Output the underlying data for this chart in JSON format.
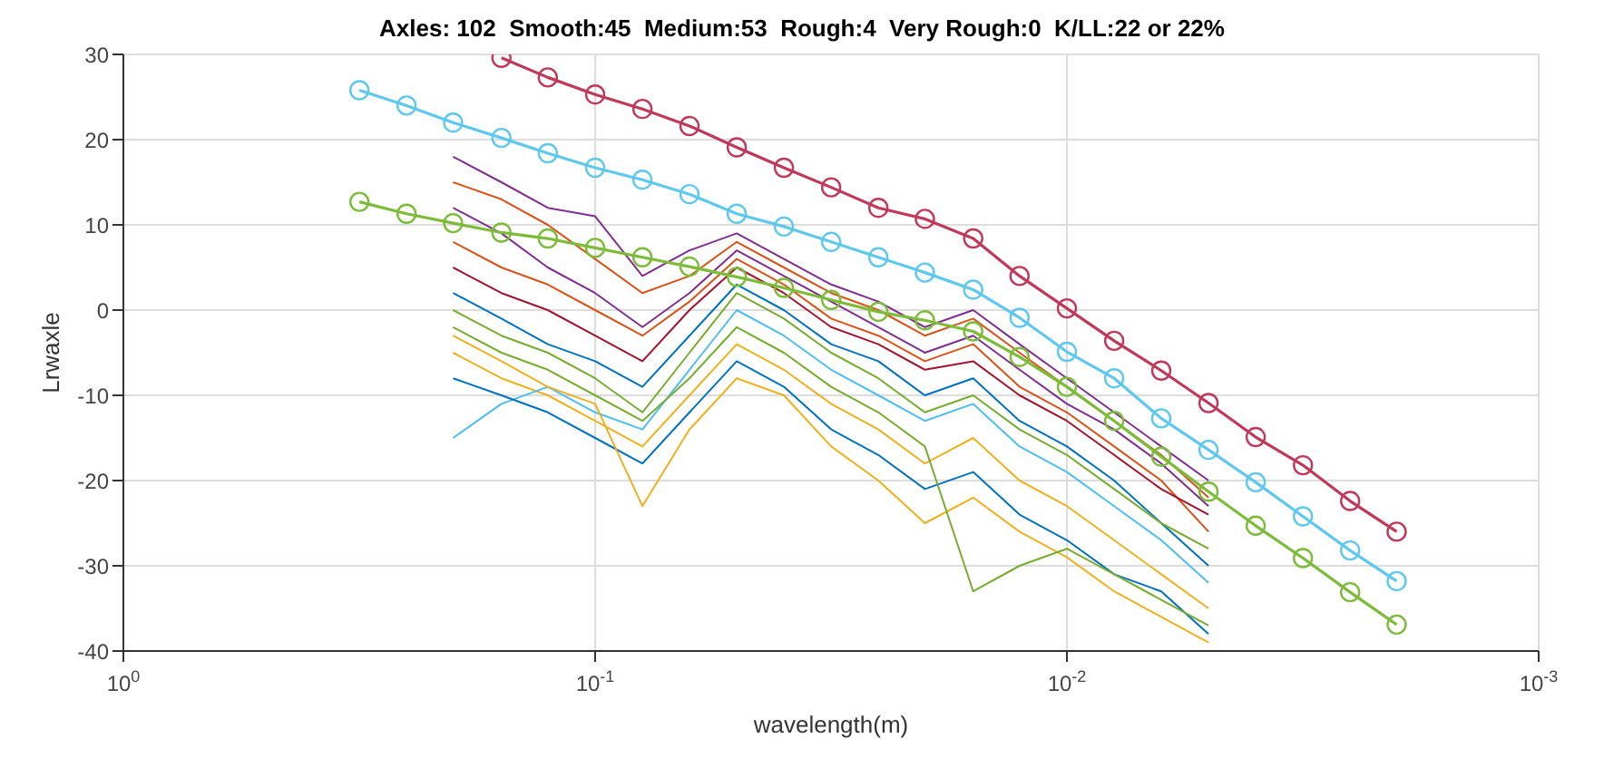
{
  "chart_data": {
    "type": "line",
    "title": "Axles: 102  Smooth:45  Medium:53  Rough:4  Very Rough:0  K/LL:22 or 22%",
    "xlabel": "wavelength(m)",
    "ylabel": "Lrwaxle",
    "log": "x",
    "grid": true,
    "line_style": "solid",
    "xlim": [
      1,
      0.001
    ],
    "xticks": [
      {
        "value": 1,
        "label": "10$^{0}$"
      },
      {
        "value": 0.1,
        "label": "10$^{-1}$"
      },
      {
        "value": 0.01,
        "label": "10$^{-2}$"
      },
      {
        "value": 0.001,
        "label": "10$^{-3}$"
      }
    ],
    "ylim": [
      -40,
      30
    ],
    "yticks": [
      -40,
      -30,
      -20,
      -10,
      0,
      10,
      20,
      30
    ],
    "x": [
      0.2,
      0.158,
      0.126,
      0.1,
      0.0794,
      0.0631,
      0.0501,
      0.0398,
      0.0316,
      0.0251,
      0.02,
      0.0158,
      0.0126,
      0.01,
      0.00794,
      0.00631,
      0.00501
    ],
    "series": [
      {
        "color": "#0072bd",
        "marker": "none",
        "values": [
          2,
          -1,
          -4,
          -6,
          -9,
          -3,
          3,
          0,
          -4,
          -6,
          -10,
          -8,
          -13,
          -16,
          -20,
          -25,
          -30
        ]
      },
      {
        "color": "#d95319",
        "marker": "none",
        "values": [
          8,
          5,
          3,
          0,
          -3,
          1,
          6,
          3,
          -1,
          -3,
          -6,
          -4,
          -9,
          -12,
          -16,
          -20,
          -26
        ]
      },
      {
        "color": "#edb120",
        "marker": "none",
        "values": [
          -5,
          -8,
          -10,
          -13,
          -16,
          -10,
          -4,
          -7,
          -11,
          -14,
          -18,
          -15,
          -20,
          -23,
          -27,
          -31,
          -35
        ]
      },
      {
        "color": "#7e2f8e",
        "marker": "none",
        "values": [
          12,
          9,
          5,
          2,
          -2,
          2,
          7,
          4,
          1,
          -2,
          -5,
          -3,
          -7,
          -11,
          -14,
          -18,
          -23
        ]
      },
      {
        "color": "#77ac30",
        "marker": "none",
        "values": [
          0,
          -3,
          -5,
          -8,
          -12,
          -5,
          2,
          -1,
          -5,
          -8,
          -12,
          -10,
          -14,
          -17,
          -21,
          -25,
          -28
        ]
      },
      {
        "color": "#4dbeee",
        "marker": "none",
        "values": [
          -15,
          -11,
          -9,
          -12,
          -14,
          -7,
          0,
          -3,
          -7,
          -10,
          -13,
          -11,
          -16,
          -19,
          -23,
          -27,
          -32
        ]
      },
      {
        "color": "#a2142f",
        "marker": "none",
        "values": [
          5,
          2,
          0,
          -3,
          -6,
          0,
          5,
          2,
          -2,
          -4,
          -7,
          -6,
          -10,
          -13,
          -17,
          -21,
          -24
        ]
      },
      {
        "color": "#0072bd",
        "marker": "none",
        "values": [
          -8,
          -10,
          -12,
          -15,
          -18,
          -12,
          -6,
          -9,
          -14,
          -17,
          -21,
          -19,
          -24,
          -27,
          -31,
          -33,
          -38
        ]
      },
      {
        "color": "#d95319",
        "marker": "none",
        "values": [
          15,
          13,
          10,
          6,
          2,
          4,
          8,
          5,
          2,
          0,
          -3,
          -1,
          -5,
          -9,
          -13,
          -17,
          -22
        ]
      },
      {
        "color": "#edb120",
        "marker": "none",
        "values": [
          -3,
          -6,
          -9,
          -11,
          -23,
          -14,
          -8,
          -10,
          -16,
          -20,
          -25,
          -22,
          -26,
          -29,
          -33,
          -36,
          -39
        ]
      },
      {
        "color": "#7e2f8e",
        "marker": "none",
        "values": [
          18,
          15,
          12,
          11,
          4,
          7,
          9,
          6,
          3,
          1,
          -2,
          0,
          -4,
          -8,
          -12,
          -16,
          -20
        ]
      },
      {
        "color": "#77ac30",
        "marker": "none",
        "values": [
          -2,
          -5,
          -7,
          -10,
          -13,
          -8,
          -2,
          -5,
          -9,
          -12,
          -16,
          -33,
          -30,
          -28,
          -31,
          -34,
          -37
        ]
      },
      {
        "color": "#c0395a",
        "marker": "circle",
        "x": [
          0.158,
          0.126,
          0.1,
          0.0794,
          0.0631,
          0.0501,
          0.0398,
          0.0316,
          0.0251,
          0.02,
          0.0158,
          0.0126,
          0.01,
          0.00794,
          0.00631,
          0.00501,
          0.00398,
          0.00316,
          0.00251,
          0.002
        ],
        "values": [
          29.6,
          27.3,
          25.3,
          23.6,
          21.6,
          19.1,
          16.7,
          14.4,
          12,
          10.7,
          8.4,
          4,
          0.2,
          -3.6,
          -7.1,
          -10.9,
          -14.9,
          -18.2,
          -22.4,
          -26
        ]
      },
      {
        "color": "#5ec8ee",
        "marker": "circle",
        "x": [
          0.316,
          0.251,
          0.2,
          0.158,
          0.126,
          0.1,
          0.0794,
          0.0631,
          0.0501,
          0.0398,
          0.0316,
          0.0251,
          0.02,
          0.0158,
          0.0126,
          0.01,
          0.00794,
          0.00631,
          0.00501,
          0.00398,
          0.00316,
          0.00251,
          0.002
        ],
        "values": [
          25.8,
          24,
          22,
          20.2,
          18.4,
          16.7,
          15.3,
          13.6,
          11.3,
          9.8,
          8,
          6.2,
          4.4,
          2.4,
          -0.9,
          -4.9,
          -8,
          -12.7,
          -16.4,
          -20.2,
          -24.2,
          -28.2,
          -31.8
        ]
      },
      {
        "color": "#7dbb3a",
        "marker": "circle",
        "x": [
          0.316,
          0.251,
          0.2,
          0.158,
          0.126,
          0.1,
          0.0794,
          0.0631,
          0.0501,
          0.0398,
          0.0316,
          0.0251,
          0.02,
          0.0158,
          0.0126,
          0.01,
          0.00794,
          0.00631,
          0.00501,
          0.00398,
          0.00316,
          0.00251,
          0.002
        ],
        "values": [
          12.7,
          11.3,
          10.2,
          9.1,
          8.4,
          7.3,
          6.2,
          5.1,
          3.9,
          2.6,
          1.2,
          -0.2,
          -1.2,
          -2.5,
          -5.5,
          -9,
          -13,
          -17.2,
          -21.3,
          -25.3,
          -29.1,
          -33.1,
          -36.9
        ]
      }
    ]
  }
}
